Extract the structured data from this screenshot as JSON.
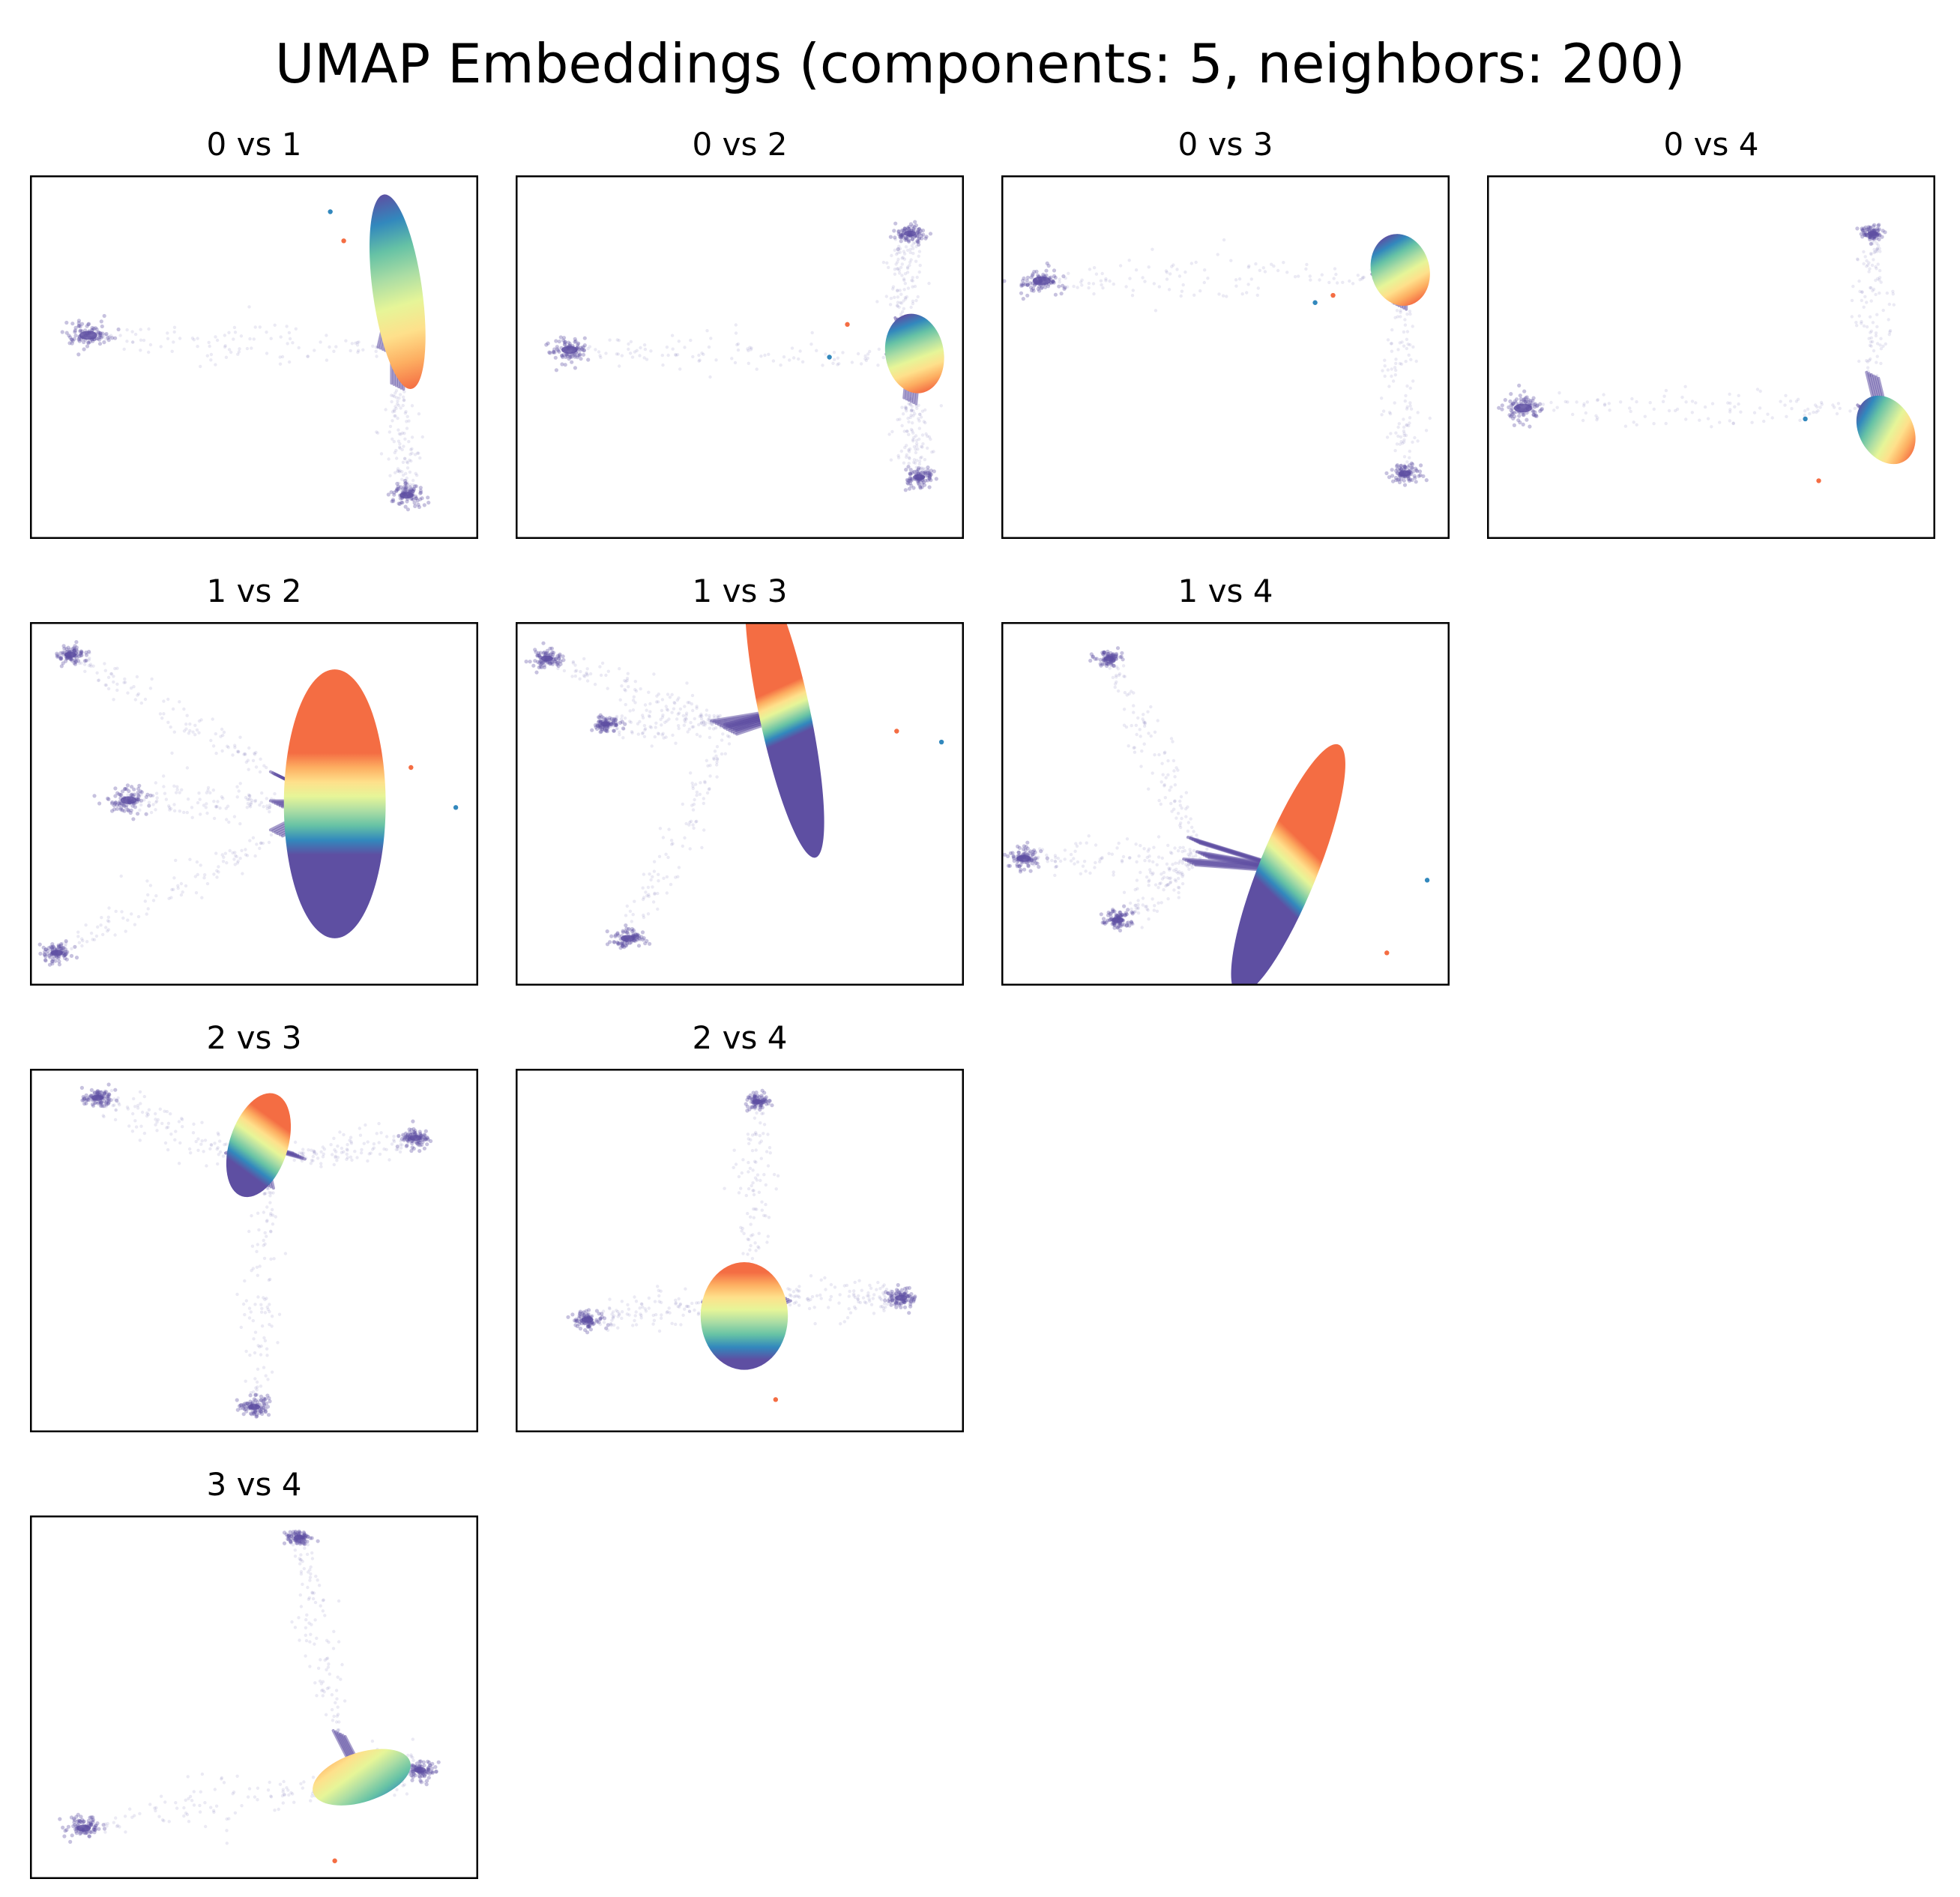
{
  "title": "UMAP Embeddings (components: 5, neighbors: 200)",
  "colors": {
    "background": "#ffffff",
    "frame": "#000000",
    "dense_core": "#5e4fa2",
    "colormap": [
      "#5e4fa2",
      "#3288bd",
      "#66c2a5",
      "#abdda4",
      "#e6f598",
      "#fee08b",
      "#fdae61",
      "#f46d43"
    ]
  },
  "chart_data": [
    {
      "type": "scatter",
      "title": "0 vs 1",
      "grid": false,
      "ticks": false,
      "core": {
        "center": [
          0.82,
          0.32
        ],
        "axes": [
          0.055,
          0.27
        ],
        "angle": 82
      },
      "arms": [
        {
          "from": [
            0.79,
            0.48
          ],
          "to": [
            0.13,
            0.44
          ],
          "blob": 0.045
        },
        {
          "from": [
            0.82,
            0.58
          ],
          "to": [
            0.84,
            0.88
          ],
          "blob": 0.035
        }
      ],
      "outliers": [
        {
          "at": [
            0.67,
            0.1
          ],
          "color": "#3288bd"
        },
        {
          "at": [
            0.7,
            0.18
          ],
          "color": "#f46d43"
        }
      ]
    },
    {
      "type": "scatter",
      "title": "0 vs 2",
      "grid": false,
      "ticks": false,
      "core": {
        "center": [
          0.89,
          0.49
        ],
        "axes": [
          0.065,
          0.11
        ],
        "angle": 80
      },
      "arms": [
        {
          "from": [
            0.84,
            0.5
          ],
          "to": [
            0.12,
            0.48
          ],
          "blob": 0.04
        },
        {
          "from": [
            0.86,
            0.4
          ],
          "to": [
            0.88,
            0.16
          ],
          "blob": 0.03
        },
        {
          "from": [
            0.88,
            0.62
          ],
          "to": [
            0.9,
            0.83
          ],
          "blob": 0.03
        }
      ],
      "outliers": [
        {
          "at": [
            0.74,
            0.41
          ],
          "color": "#f46d43"
        },
        {
          "at": [
            0.7,
            0.5
          ],
          "color": "#3288bd"
        }
      ]
    },
    {
      "type": "scatter",
      "title": "0 vs 3",
      "grid": false,
      "ticks": false,
      "core": {
        "center": [
          0.89,
          0.26
        ],
        "axes": [
          0.065,
          0.1
        ],
        "angle": 75
      },
      "arms": [
        {
          "from": [
            0.84,
            0.28
          ],
          "to": [
            0.09,
            0.29
          ],
          "blob": 0.045
        },
        {
          "from": [
            0.89,
            0.36
          ],
          "to": [
            0.9,
            0.82
          ],
          "blob": 0.03
        }
      ],
      "outliers": [
        {
          "at": [
            0.7,
            0.35
          ],
          "color": "#3288bd"
        },
        {
          "at": [
            0.74,
            0.33
          ],
          "color": "#f46d43"
        }
      ]
    },
    {
      "type": "scatter",
      "title": "0 vs 4",
      "grid": false,
      "ticks": false,
      "core": {
        "center": [
          0.89,
          0.7
        ],
        "axes": [
          0.06,
          0.1
        ],
        "angle": 60
      },
      "arms": [
        {
          "from": [
            0.84,
            0.64
          ],
          "to": [
            0.08,
            0.64
          ],
          "blob": 0.045
        },
        {
          "from": [
            0.86,
            0.55
          ],
          "to": [
            0.86,
            0.16
          ],
          "blob": 0.025
        }
      ],
      "outliers": [
        {
          "at": [
            0.71,
            0.67
          ],
          "color": "#3288bd"
        },
        {
          "at": [
            0.74,
            0.84
          ],
          "color": "#f46d43"
        }
      ]
    },
    {
      "type": "scatter",
      "title": "1 vs 2",
      "grid": false,
      "ticks": false,
      "core": {
        "center": [
          0.68,
          0.5
        ],
        "axes": [
          0.3,
          0.14
        ],
        "angle": 0
      },
      "arms": [
        {
          "from": [
            0.55,
            0.42
          ],
          "to": [
            0.09,
            0.09
          ],
          "blob": 0.03
        },
        {
          "from": [
            0.55,
            0.58
          ],
          "to": [
            0.06,
            0.91
          ],
          "blob": 0.03
        },
        {
          "from": [
            0.55,
            0.5
          ],
          "to": [
            0.22,
            0.49
          ],
          "blob": 0.04
        }
      ],
      "outliers": [
        {
          "at": [
            0.85,
            0.4
          ],
          "color": "#f46d43"
        },
        {
          "at": [
            0.95,
            0.51
          ],
          "color": "#3288bd"
        }
      ]
    },
    {
      "type": "scatter",
      "title": "1 vs 3",
      "grid": false,
      "ticks": false,
      "core": {
        "center": [
          0.6,
          0.25
        ],
        "axes": [
          0.33,
          0.07
        ],
        "angle": -12
      },
      "arms": [
        {
          "from": [
            0.48,
            0.29
          ],
          "to": [
            0.07,
            0.1
          ],
          "blob": 0.03
        },
        {
          "from": [
            0.48,
            0.3
          ],
          "to": [
            0.25,
            0.87
          ],
          "blob": 0.035
        },
        {
          "from": [
            0.45,
            0.28
          ],
          "to": [
            0.2,
            0.28
          ],
          "blob": 0.025
        }
      ],
      "outliers": [
        {
          "at": [
            0.85,
            0.3
          ],
          "color": "#f46d43"
        },
        {
          "at": [
            0.95,
            0.33
          ],
          "color": "#3288bd"
        }
      ]
    },
    {
      "type": "scatter",
      "title": "1 vs 4",
      "grid": false,
      "ticks": false,
      "core": {
        "center": [
          0.64,
          0.68
        ],
        "axes": [
          0.3,
          0.08
        ],
        "angle": 22
      },
      "arms": [
        {
          "from": [
            0.45,
            0.64
          ],
          "to": [
            0.05,
            0.65
          ],
          "blob": 0.035
        },
        {
          "from": [
            0.43,
            0.6
          ],
          "to": [
            0.24,
            0.1
          ],
          "blob": 0.025
        },
        {
          "from": [
            0.42,
            0.66
          ],
          "to": [
            0.26,
            0.82
          ],
          "blob": 0.03
        }
      ],
      "outliers": [
        {
          "at": [
            0.95,
            0.71
          ],
          "color": "#3288bd"
        },
        {
          "at": [
            0.86,
            0.91
          ],
          "color": "#f46d43"
        }
      ]
    },
    {
      "type": "scatter",
      "title": "2 vs 3",
      "grid": false,
      "ticks": false,
      "core": {
        "center": [
          0.51,
          0.21
        ],
        "axes": [
          0.12,
          0.08
        ],
        "angle": 18
      },
      "arms": [
        {
          "from": [
            0.45,
            0.24
          ],
          "to": [
            0.15,
            0.08
          ],
          "blob": 0.03
        },
        {
          "from": [
            0.6,
            0.24
          ],
          "to": [
            0.86,
            0.19
          ],
          "blob": 0.03
        },
        {
          "from": [
            0.53,
            0.32
          ],
          "to": [
            0.5,
            0.93
          ],
          "blob": 0.03
        }
      ],
      "outliers": []
    },
    {
      "type": "scatter",
      "title": "2 vs 4",
      "grid": false,
      "ticks": false,
      "core": {
        "center": [
          0.51,
          0.68
        ],
        "axes": [
          0.12,
          0.12
        ],
        "angle": 0
      },
      "arms": [
        {
          "from": [
            0.52,
            0.58
          ],
          "to": [
            0.54,
            0.09
          ],
          "blob": 0.025
        },
        {
          "from": [
            0.43,
            0.65
          ],
          "to": [
            0.16,
            0.69
          ],
          "blob": 0.03
        },
        {
          "from": [
            0.6,
            0.63
          ],
          "to": [
            0.86,
            0.63
          ],
          "blob": 0.03
        }
      ],
      "outliers": [
        {
          "at": [
            0.58,
            0.91
          ],
          "color": "#f46d43"
        }
      ]
    },
    {
      "type": "scatter",
      "title": "3 vs 4",
      "grid": false,
      "ticks": false,
      "core": {
        "center": [
          0.74,
          0.72
        ],
        "axes": [
          0.055,
          0.14
        ],
        "angle": -18
      },
      "arms": [
        {
          "from": [
            0.69,
            0.6
          ],
          "to": [
            0.6,
            0.06
          ],
          "blob": 0.025
        },
        {
          "from": [
            0.69,
            0.74
          ],
          "to": [
            0.12,
            0.86
          ],
          "blob": 0.035
        },
        {
          "from": [
            0.78,
            0.68
          ],
          "to": [
            0.87,
            0.7
          ],
          "blob": 0.03
        }
      ],
      "outliers": [
        {
          "at": [
            0.68,
            0.95
          ],
          "color": "#f46d43"
        }
      ]
    }
  ]
}
